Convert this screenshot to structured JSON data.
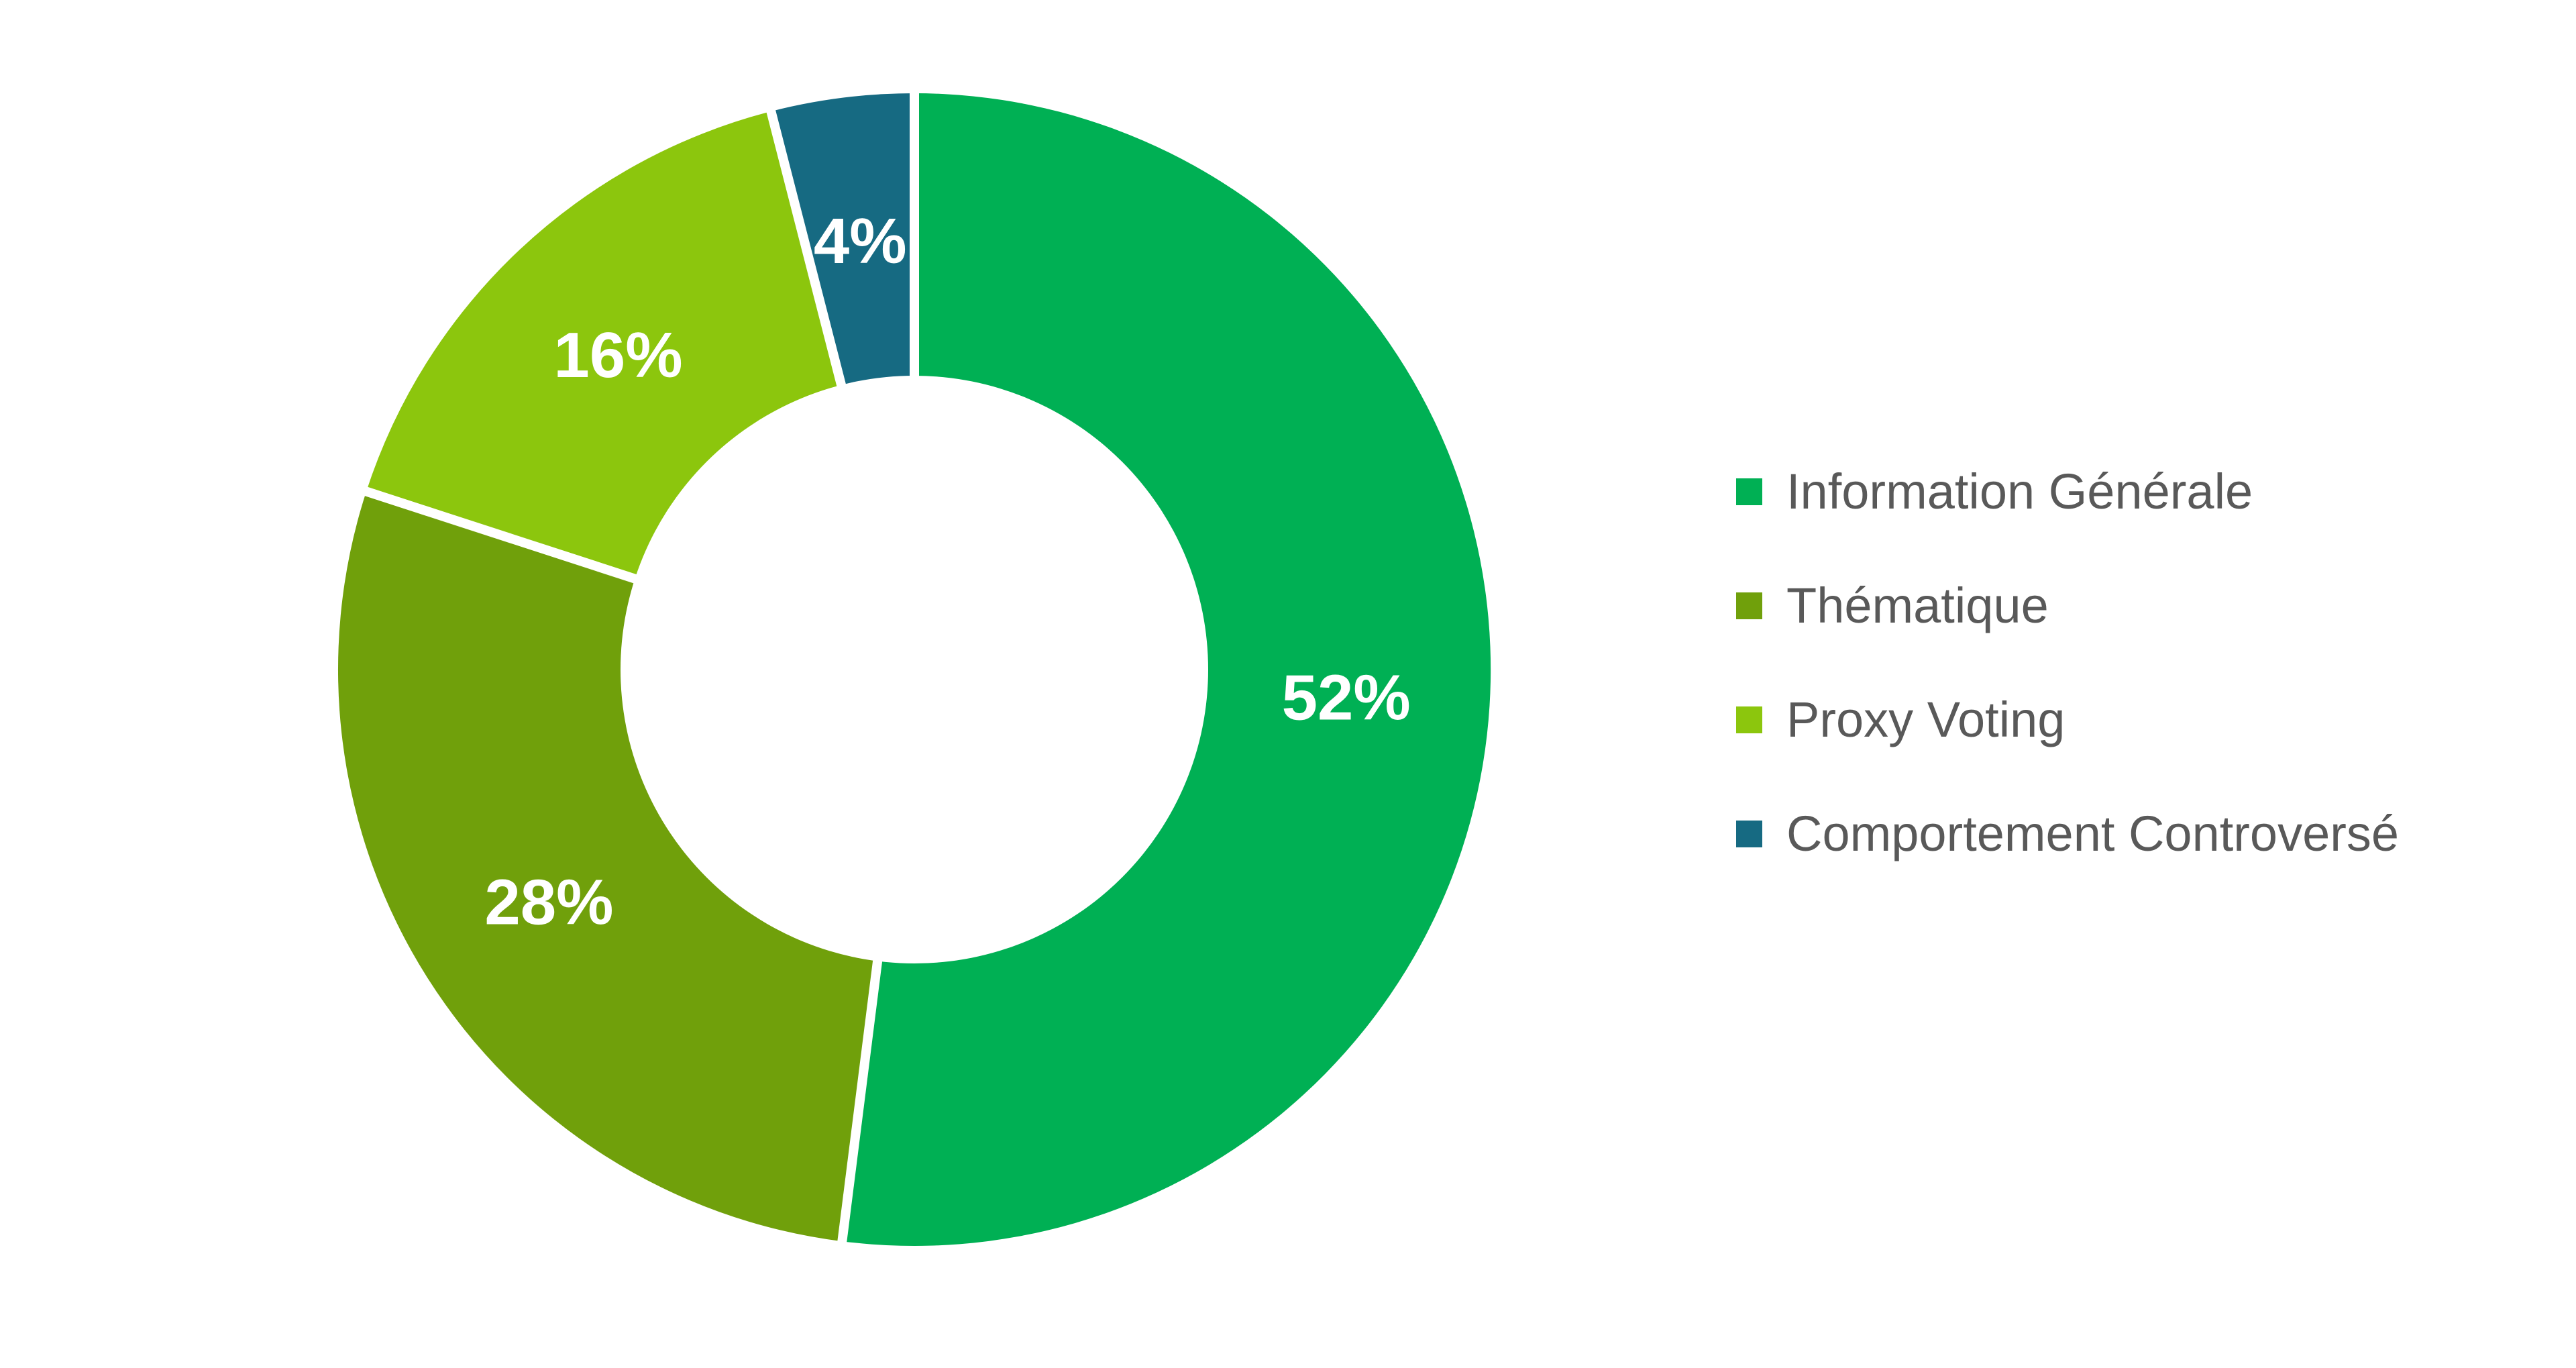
{
  "chart_data": {
    "type": "pie",
    "subtype": "donut",
    "title": "",
    "categories": [
      "Information Générale",
      "Thématique",
      "Proxy Voting",
      "Comportement Controversé"
    ],
    "values": [
      52,
      28,
      16,
      4
    ],
    "slice_labels": [
      "52%",
      "28%",
      "16%",
      "4%"
    ],
    "colors": [
      "#00B054",
      "#70A00B",
      "#8CC60D",
      "#166A82"
    ],
    "start_angle_deg": 0,
    "direction": "clockwise",
    "donut_hole_ratio": 0.51,
    "slice_gap_color": "#ffffff",
    "slice_label_color": "#ffffff",
    "legend_position": "right",
    "legend_text_color": "#595959",
    "legend": [
      {
        "label": "Information Générale",
        "color": "#00B054"
      },
      {
        "label": "Thématique",
        "color": "#70A00B"
      },
      {
        "label": "Proxy Voting",
        "color": "#8CC60D"
      },
      {
        "label": "Comportement Controversé",
        "color": "#166A82"
      }
    ]
  }
}
